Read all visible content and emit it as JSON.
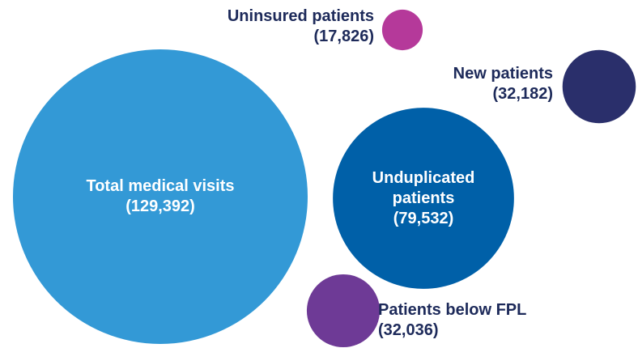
{
  "chart_data": {
    "type": "bubble",
    "categories": [
      "Total medical visits",
      "Unduplicated patients",
      "New patients",
      "Uninsured patients",
      "Patients below FPL"
    ],
    "values": [
      129392,
      79532,
      32182,
      17826,
      32036
    ],
    "value_labels": [
      "(129,392)",
      "(79,532)",
      "(32,182)",
      "(17,826)",
      "(32,036)"
    ],
    "colors": [
      "#3399d6",
      "#0060a8",
      "#2a2f6b",
      "#b5399a",
      "#6e3a96"
    ]
  }
}
